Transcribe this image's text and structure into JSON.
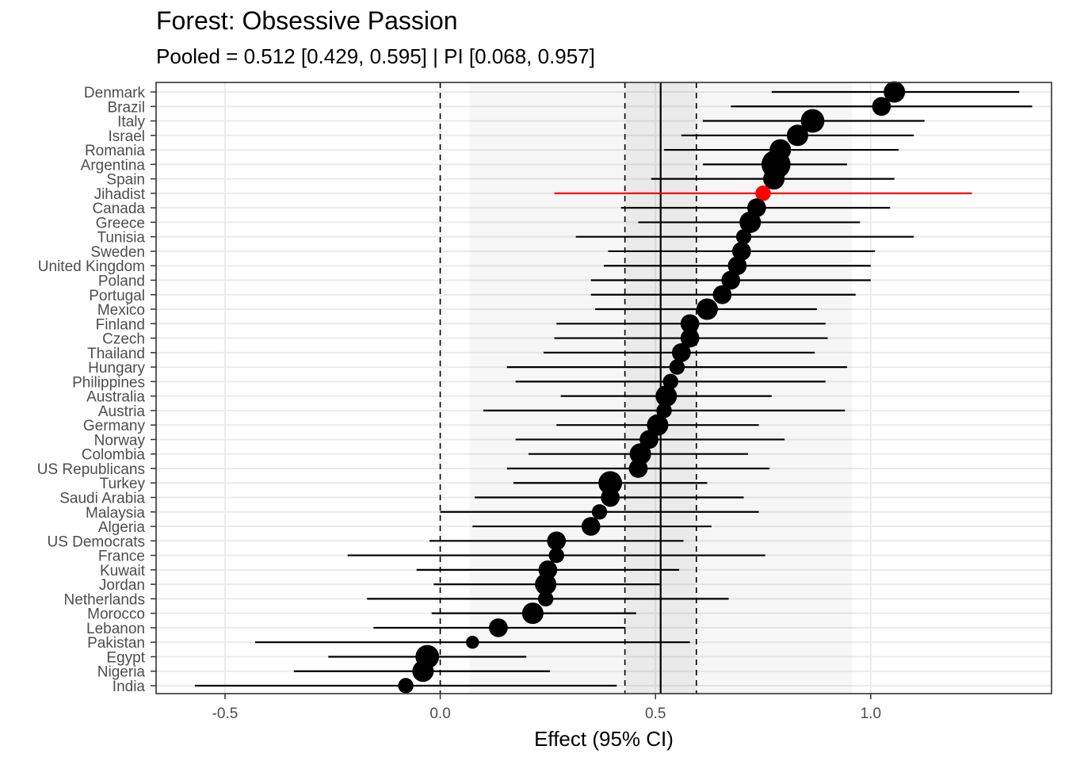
{
  "title": "Forest: Obsessive Passion",
  "subtitle": "Pooled = 0.512 [0.429, 0.595] | PI [0.068, 0.957]",
  "chart_data": {
    "type": "forest",
    "title": "Forest: Obsessive Passion",
    "subtitle": "Pooled = 0.512 [0.429, 0.595] | PI [0.068, 0.957]",
    "xlabel": "Effect (95% CI)",
    "ylabel": "",
    "xlim": [
      -0.66,
      1.42
    ],
    "xticks": [
      -0.5,
      0.0,
      0.5,
      1.0
    ],
    "xtick_labels": [
      "-0.5",
      "0.0",
      "0.5",
      "1.0"
    ],
    "grid": true,
    "pooled": {
      "estimate": 0.512,
      "ci": [
        0.429,
        0.595
      ],
      "pi": [
        0.068,
        0.957
      ]
    },
    "null_line": 0,
    "highlight_color": "#ff0000",
    "point_color": "#000000",
    "rows": [
      {
        "label": "Denmark",
        "est": 1.055,
        "lo": 0.77,
        "hi": 1.345,
        "w": 3
      },
      {
        "label": "Brazil",
        "est": 1.025,
        "lo": 0.675,
        "hi": 1.375,
        "w": 2
      },
      {
        "label": "Italy",
        "est": 0.865,
        "lo": 0.61,
        "hi": 1.125,
        "w": 4
      },
      {
        "label": "Israel",
        "est": 0.83,
        "lo": 0.56,
        "hi": 1.1,
        "w": 3
      },
      {
        "label": "Romania",
        "est": 0.79,
        "lo": 0.52,
        "hi": 1.065,
        "w": 3
      },
      {
        "label": "Argentina",
        "est": 0.78,
        "lo": 0.61,
        "hi": 0.945,
        "w": 7
      },
      {
        "label": "Spain",
        "est": 0.775,
        "lo": 0.49,
        "hi": 1.055,
        "w": 3
      },
      {
        "label": "Jihadist",
        "est": 0.75,
        "lo": 0.265,
        "hi": 1.235,
        "w": 1,
        "highlight": true
      },
      {
        "label": "Canada",
        "est": 0.735,
        "lo": 0.42,
        "hi": 1.045,
        "w": 2
      },
      {
        "label": "Greece",
        "est": 0.72,
        "lo": 0.46,
        "hi": 0.975,
        "w": 3
      },
      {
        "label": "Tunisia",
        "est": 0.705,
        "lo": 0.315,
        "hi": 1.1,
        "w": 1
      },
      {
        "label": "Sweden",
        "est": 0.7,
        "lo": 0.39,
        "hi": 1.01,
        "w": 2
      },
      {
        "label": "United Kingdom",
        "est": 0.69,
        "lo": 0.38,
        "hi": 1.0,
        "w": 2
      },
      {
        "label": "Poland",
        "est": 0.675,
        "lo": 0.35,
        "hi": 1.0,
        "w": 2
      },
      {
        "label": "Portugal",
        "est": 0.655,
        "lo": 0.35,
        "hi": 0.965,
        "w": 2
      },
      {
        "label": "Mexico",
        "est": 0.62,
        "lo": 0.36,
        "hi": 0.875,
        "w": 3
      },
      {
        "label": "Finland",
        "est": 0.58,
        "lo": 0.27,
        "hi": 0.895,
        "w": 2
      },
      {
        "label": "Czech",
        "est": 0.58,
        "lo": 0.265,
        "hi": 0.9,
        "w": 2
      },
      {
        "label": "Thailand",
        "est": 0.56,
        "lo": 0.24,
        "hi": 0.87,
        "w": 2
      },
      {
        "label": "Hungary",
        "est": 0.55,
        "lo": 0.155,
        "hi": 0.945,
        "w": 1
      },
      {
        "label": "Philippines",
        "est": 0.535,
        "lo": 0.175,
        "hi": 0.895,
        "w": 1
      },
      {
        "label": "Australia",
        "est": 0.525,
        "lo": 0.28,
        "hi": 0.77,
        "w": 3
      },
      {
        "label": "Austria",
        "est": 0.52,
        "lo": 0.1,
        "hi": 0.94,
        "w": 1
      },
      {
        "label": "Germany",
        "est": 0.505,
        "lo": 0.27,
        "hi": 0.74,
        "w": 3
      },
      {
        "label": "Norway",
        "est": 0.485,
        "lo": 0.175,
        "hi": 0.8,
        "w": 2
      },
      {
        "label": "Colombia",
        "est": 0.465,
        "lo": 0.205,
        "hi": 0.715,
        "w": 3
      },
      {
        "label": "US Republicans",
        "est": 0.46,
        "lo": 0.155,
        "hi": 0.765,
        "w": 2
      },
      {
        "label": "Turkey",
        "est": 0.395,
        "lo": 0.17,
        "hi": 0.62,
        "w": 4
      },
      {
        "label": "Saudi Arabia",
        "est": 0.395,
        "lo": 0.08,
        "hi": 0.705,
        "w": 2
      },
      {
        "label": "Malaysia",
        "est": 0.37,
        "lo": 0.0,
        "hi": 0.74,
        "w": 1
      },
      {
        "label": "Algeria",
        "est": 0.35,
        "lo": 0.075,
        "hi": 0.63,
        "w": 2
      },
      {
        "label": "US Democrats",
        "est": 0.27,
        "lo": -0.025,
        "hi": 0.565,
        "w": 2
      },
      {
        "label": "France",
        "est": 0.27,
        "lo": -0.215,
        "hi": 0.755,
        "w": 1
      },
      {
        "label": "Kuwait",
        "est": 0.25,
        "lo": -0.055,
        "hi": 0.555,
        "w": 2
      },
      {
        "label": "Jordan",
        "est": 0.245,
        "lo": -0.015,
        "hi": 0.51,
        "w": 3
      },
      {
        "label": "Netherlands",
        "est": 0.245,
        "lo": -0.17,
        "hi": 0.67,
        "w": 1
      },
      {
        "label": "Morocco",
        "est": 0.215,
        "lo": -0.02,
        "hi": 0.455,
        "w": 3
      },
      {
        "label": "Lebanon",
        "est": 0.135,
        "lo": -0.155,
        "hi": 0.43,
        "w": 2
      },
      {
        "label": "Pakistan",
        "est": 0.075,
        "lo": -0.43,
        "hi": 0.58,
        "w": 0.5
      },
      {
        "label": "Egypt",
        "est": -0.03,
        "lo": -0.26,
        "hi": 0.2,
        "w": 4
      },
      {
        "label": "Nigeria",
        "est": -0.04,
        "lo": -0.34,
        "hi": 0.255,
        "w": 3
      },
      {
        "label": "India",
        "est": -0.08,
        "lo": -0.57,
        "hi": 0.41,
        "w": 1
      }
    ]
  }
}
